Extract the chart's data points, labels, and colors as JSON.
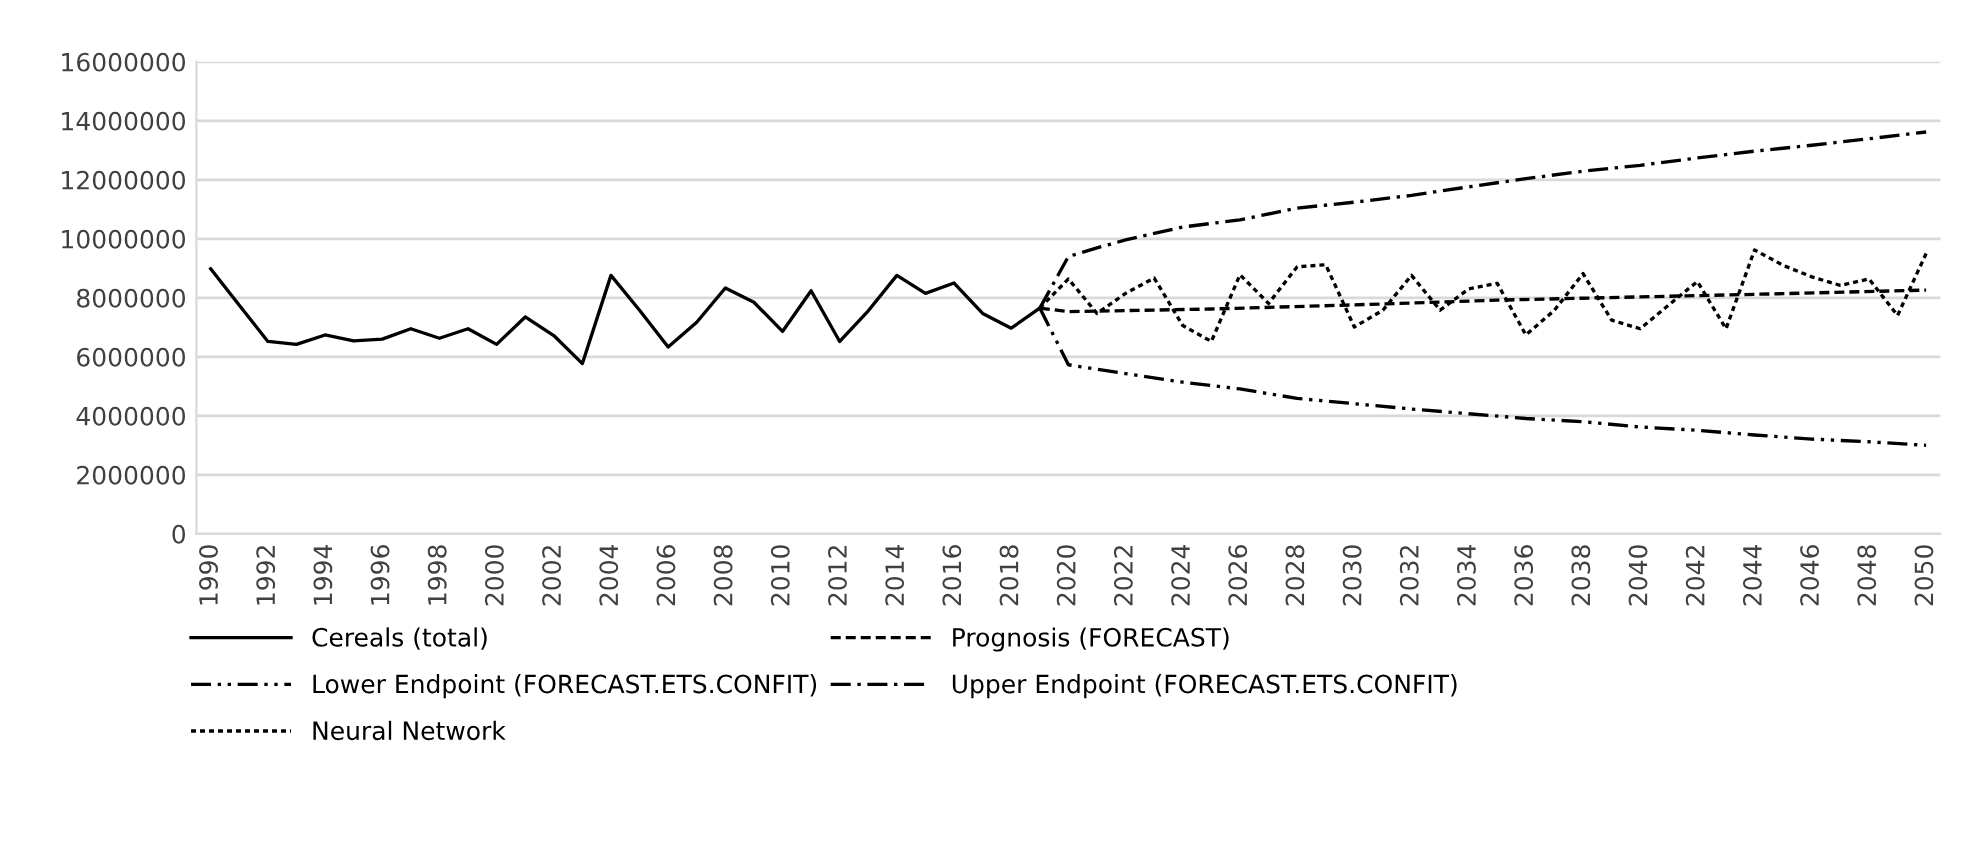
{
  "chart_data": {
    "type": "line",
    "ylim": [
      0,
      16000000
    ],
    "yticks": [
      0,
      2000000,
      4000000,
      6000000,
      8000000,
      10000000,
      12000000,
      14000000,
      16000000
    ],
    "xlim": [
      1989.5,
      2050.5
    ],
    "xticks": [
      1990,
      1992,
      1994,
      1996,
      1998,
      2000,
      2002,
      2004,
      2006,
      2008,
      2010,
      2012,
      2014,
      2016,
      2018,
      2020,
      2022,
      2024,
      2026,
      2028,
      2030,
      2032,
      2034,
      2036,
      2038,
      2040,
      2042,
      2044,
      2046,
      2048,
      2050
    ],
    "grid": "y",
    "legend": "bottom",
    "series": [
      {
        "name": "Cereals (total)",
        "color": "#000000",
        "line_style": "solid",
        "x": [
          1990,
          1991,
          1992,
          1993,
          1994,
          1995,
          1996,
          1997,
          1998,
          1999,
          2000,
          2001,
          2002,
          2003,
          2004,
          2005,
          2006,
          2007,
          2008,
          2009,
          2010,
          2011,
          2012,
          2013,
          2014,
          2015,
          2016,
          2017,
          2018,
          2019
        ],
        "values": [
          8980000,
          7750000,
          6520000,
          6420000,
          6740000,
          6540000,
          6600000,
          6950000,
          6630000,
          6950000,
          6420000,
          7350000,
          6720000,
          5770000,
          8760000,
          7580000,
          6330000,
          7170000,
          8330000,
          7850000,
          6860000,
          8240000,
          6520000,
          7560000,
          8760000,
          8150000,
          8500000,
          7470000,
          6970000,
          7650000
        ]
      },
      {
        "name": "Prognosis (FORECAST)",
        "color": "#000000",
        "line_style": "dashed",
        "x": [
          2019,
          2020,
          2025,
          2030,
          2035,
          2040,
          2045,
          2050
        ],
        "values": [
          7650000,
          7530000,
          7620000,
          7760000,
          7920000,
          8030000,
          8140000,
          8260000
        ]
      },
      {
        "name": "Lower Endpoint (FORECAST.ETS.CONFIT)",
        "color": "#000000",
        "line_style": "dashdotdot",
        "x": [
          2019,
          2020,
          2022,
          2024,
          2026,
          2028,
          2030,
          2032,
          2034,
          2036,
          2038,
          2040,
          2042,
          2044,
          2046,
          2048,
          2050
        ],
        "values": [
          7650000,
          5730000,
          5430000,
          5140000,
          4910000,
          4590000,
          4410000,
          4230000,
          4070000,
          3910000,
          3800000,
          3620000,
          3510000,
          3350000,
          3210000,
          3120000,
          3000000
        ]
      },
      {
        "name": "Upper Endpoint (FORECAST.ETS.CONFIT)",
        "color": "#000000",
        "line_style": "dashdot",
        "x": [
          2019,
          2020,
          2021,
          2022,
          2024,
          2026,
          2028,
          2030,
          2032,
          2034,
          2036,
          2038,
          2040,
          2042,
          2044,
          2046,
          2048,
          2050
        ],
        "values": [
          7650000,
          9400000,
          9690000,
          9960000,
          10400000,
          10640000,
          11040000,
          11240000,
          11470000,
          11760000,
          12040000,
          12290000,
          12490000,
          12740000,
          12970000,
          13170000,
          13390000,
          13620000
        ]
      },
      {
        "name": "Neural Network",
        "color": "#000000",
        "line_style": "dotted",
        "x": [
          2019,
          2020,
          2021,
          2022,
          2023,
          2024,
          2025,
          2026,
          2027,
          2028,
          2029,
          2030,
          2031,
          2032,
          2033,
          2034,
          2035,
          2036,
          2037,
          2038,
          2039,
          2040,
          2041,
          2042,
          2043,
          2044,
          2045,
          2046,
          2047,
          2048,
          2049,
          2050
        ],
        "values": [
          7650000,
          8640000,
          7470000,
          8150000,
          8670000,
          7060000,
          6520000,
          8780000,
          7810000,
          9050000,
          9120000,
          7010000,
          7580000,
          8760000,
          7580000,
          8300000,
          8490000,
          6740000,
          7580000,
          8820000,
          7240000,
          6950000,
          7760000,
          8550000,
          6950000,
          9620000,
          9100000,
          8710000,
          8420000,
          8640000,
          7400000,
          9500000
        ]
      }
    ]
  }
}
